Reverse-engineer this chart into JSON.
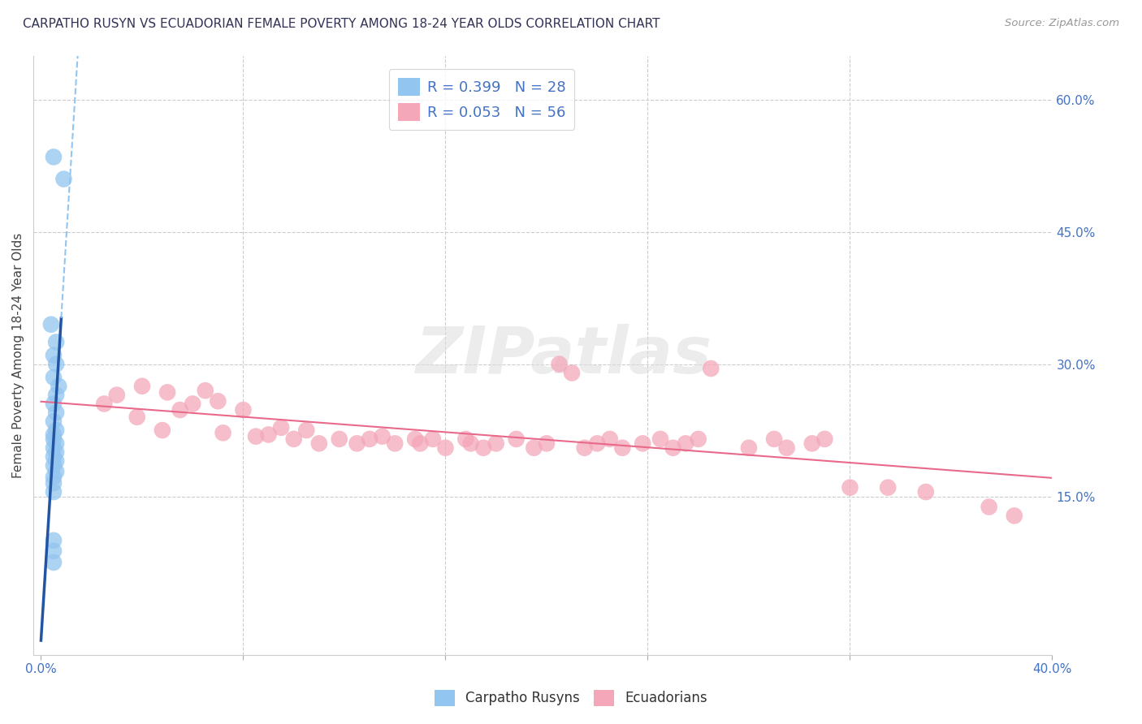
{
  "title": "CARPATHO RUSYN VS ECUADORIAN FEMALE POVERTY AMONG 18-24 YEAR OLDS CORRELATION CHART",
  "source": "Source: ZipAtlas.com",
  "ylabel": "Female Poverty Among 18-24 Year Olds",
  "r_blue": 0.399,
  "n_blue": 28,
  "r_pink": 0.053,
  "n_pink": 56,
  "blue_color": "#92C5F0",
  "pink_color": "#F4A7B9",
  "blue_line_solid_color": "#2155A3",
  "blue_line_dash_color": "#92C5F0",
  "pink_line_color": "#E8698A",
  "watermark_text": "ZIPatlas",
  "legend_r_blue_label": "R = 0.399   N = 28",
  "legend_r_pink_label": "R = 0.053   N = 56",
  "bottom_legend_blue": "Carpatho Rusyns",
  "bottom_legend_pink": "Ecuadorians",
  "xlim": [
    -0.003,
    0.4
  ],
  "ylim": [
    -0.03,
    0.65
  ],
  "ytick_vals": [
    0.15,
    0.3,
    0.45,
    0.6
  ],
  "ytick_labels": [
    "15.0%",
    "30.0%",
    "45.0%",
    "60.0%"
  ],
  "xtick_vals": [
    0.0,
    0.4
  ],
  "xtick_labels": [
    "0.0%",
    "40.0%"
  ],
  "blue_x": [
    0.005,
    0.009,
    0.004,
    0.006,
    0.005,
    0.006,
    0.005,
    0.007,
    0.006,
    0.005,
    0.006,
    0.005,
    0.006,
    0.005,
    0.005,
    0.006,
    0.005,
    0.006,
    0.005,
    0.006,
    0.005,
    0.006,
    0.005,
    0.005,
    0.005,
    0.005,
    0.005,
    0.005
  ],
  "blue_y": [
    0.535,
    0.51,
    0.345,
    0.325,
    0.31,
    0.3,
    0.285,
    0.275,
    0.265,
    0.255,
    0.245,
    0.235,
    0.225,
    0.22,
    0.215,
    0.21,
    0.205,
    0.2,
    0.195,
    0.19,
    0.185,
    0.178,
    0.172,
    0.165,
    0.155,
    0.1,
    0.088,
    0.075
  ],
  "pink_x": [
    0.03,
    0.025,
    0.04,
    0.038,
    0.05,
    0.048,
    0.06,
    0.055,
    0.065,
    0.07,
    0.072,
    0.08,
    0.085,
    0.09,
    0.095,
    0.1,
    0.105,
    0.11,
    0.118,
    0.125,
    0.13,
    0.135,
    0.14,
    0.148,
    0.15,
    0.155,
    0.16,
    0.168,
    0.17,
    0.175,
    0.18,
    0.188,
    0.195,
    0.2,
    0.205,
    0.21,
    0.215,
    0.22,
    0.225,
    0.23,
    0.238,
    0.245,
    0.25,
    0.255,
    0.26,
    0.265,
    0.28,
    0.29,
    0.295,
    0.305,
    0.31,
    0.32,
    0.335,
    0.35,
    0.375,
    0.385
  ],
  "pink_y": [
    0.265,
    0.255,
    0.275,
    0.24,
    0.268,
    0.225,
    0.255,
    0.248,
    0.27,
    0.258,
    0.222,
    0.248,
    0.218,
    0.22,
    0.228,
    0.215,
    0.225,
    0.21,
    0.215,
    0.21,
    0.215,
    0.218,
    0.21,
    0.215,
    0.21,
    0.215,
    0.205,
    0.215,
    0.21,
    0.205,
    0.21,
    0.215,
    0.205,
    0.21,
    0.3,
    0.29,
    0.205,
    0.21,
    0.215,
    0.205,
    0.21,
    0.215,
    0.205,
    0.21,
    0.215,
    0.295,
    0.205,
    0.215,
    0.205,
    0.21,
    0.215,
    0.16,
    0.16,
    0.155,
    0.138,
    0.128
  ]
}
